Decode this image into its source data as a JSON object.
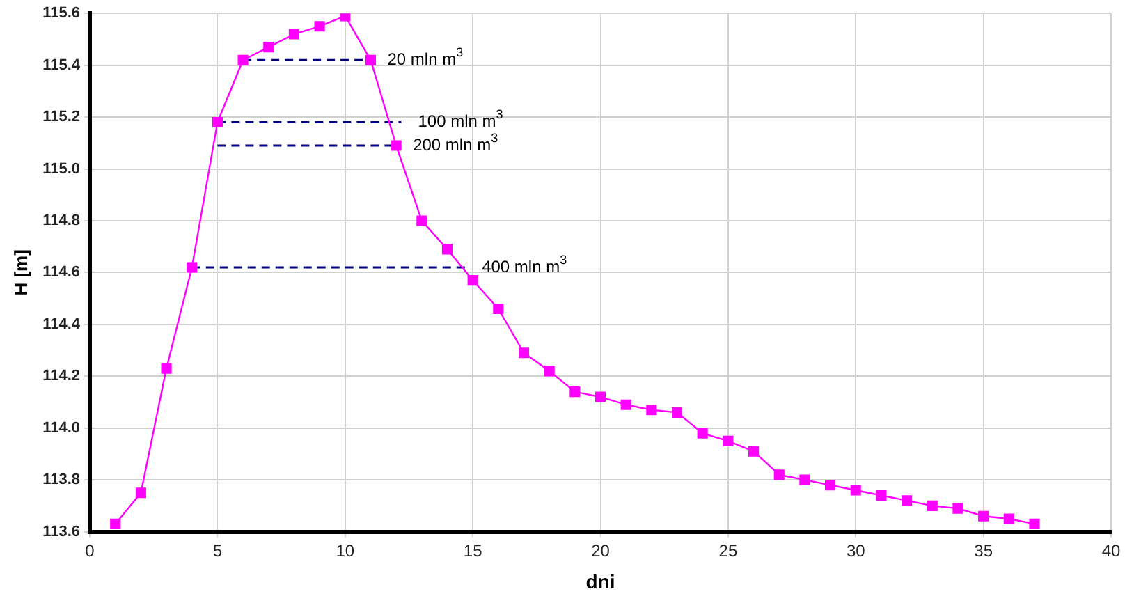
{
  "chart_data": {
    "type": "line",
    "xlabel": "dni",
    "ylabel": "H [m]",
    "xlim": [
      0,
      40
    ],
    "xticks": [
      0,
      5,
      10,
      15,
      20,
      25,
      30,
      35,
      40
    ],
    "ylim": [
      113.6,
      115.6
    ],
    "yticks": [
      {
        "value": 113.6,
        "label": "113.6"
      },
      {
        "value": 113.8,
        "label": "113.8"
      },
      {
        "value": 114.0,
        "label": "114.0"
      },
      {
        "value": 114.2,
        "label": "114.2"
      },
      {
        "value": 114.4,
        "label": "114.4"
      },
      {
        "value": 114.6,
        "label": "114.6"
      },
      {
        "value": 114.8,
        "label": "114.8"
      },
      {
        "value": 115.0,
        "label": "115.0"
      },
      {
        "value": 115.2,
        "label": "115.2"
      },
      {
        "value": 115.4,
        "label": "115.4"
      },
      {
        "value": 115.6,
        "label": "115.6"
      }
    ],
    "grid": true,
    "legend": false,
    "series": [
      {
        "color": "#ff00ff",
        "marker": "square",
        "line_style": "solid",
        "x": [
          1,
          2,
          3,
          4,
          5,
          6,
          7,
          8,
          9,
          10,
          11,
          12,
          13,
          14,
          15,
          16,
          17,
          18,
          19,
          20,
          21,
          22,
          23,
          24,
          25,
          26,
          27,
          28,
          29,
          30,
          31,
          32,
          33,
          34,
          35,
          36,
          37
        ],
        "values": [
          113.63,
          113.75,
          114.23,
          114.62,
          115.18,
          115.42,
          115.47,
          115.52,
          115.55,
          115.59,
          115.42,
          115.09,
          114.8,
          114.69,
          114.57,
          114.46,
          114.29,
          114.22,
          114.14,
          114.12,
          114.09,
          114.07,
          114.06,
          113.98,
          113.95,
          113.91,
          113.82,
          113.8,
          113.78,
          113.76,
          113.74,
          113.72,
          113.7,
          113.69,
          113.66,
          113.65,
          113.63
        ]
      },
      {
        "color": "#000080",
        "marker": "none",
        "line_style": "dashed",
        "x": [
          6,
          11
        ],
        "values": [
          115.42,
          115.42
        ]
      },
      {
        "color": "#000080",
        "marker": "none",
        "line_style": "dashed",
        "x": [
          5,
          12.2
        ],
        "values": [
          115.18,
          115.18
        ]
      },
      {
        "color": "#000080",
        "marker": "none",
        "line_style": "dashed",
        "x": [
          5,
          12
        ],
        "values": [
          115.09,
          115.09
        ]
      },
      {
        "color": "#000080",
        "marker": "none",
        "line_style": "dashed",
        "x": [
          4,
          14.7
        ],
        "values": [
          114.62,
          114.62
        ]
      }
    ],
    "annotations": [
      {
        "text": "20 mln m$^{3}$",
        "x": 11,
        "y": 115.42
      },
      {
        "text": "100 mln m$^{3}$",
        "x": 12.2,
        "y": 115.18
      },
      {
        "text": "200 mln m$^{3}$",
        "x": 12,
        "y": 115.09
      },
      {
        "text": "400 mln m$^{3}$",
        "x": 14.7,
        "y": 114.62
      }
    ]
  }
}
